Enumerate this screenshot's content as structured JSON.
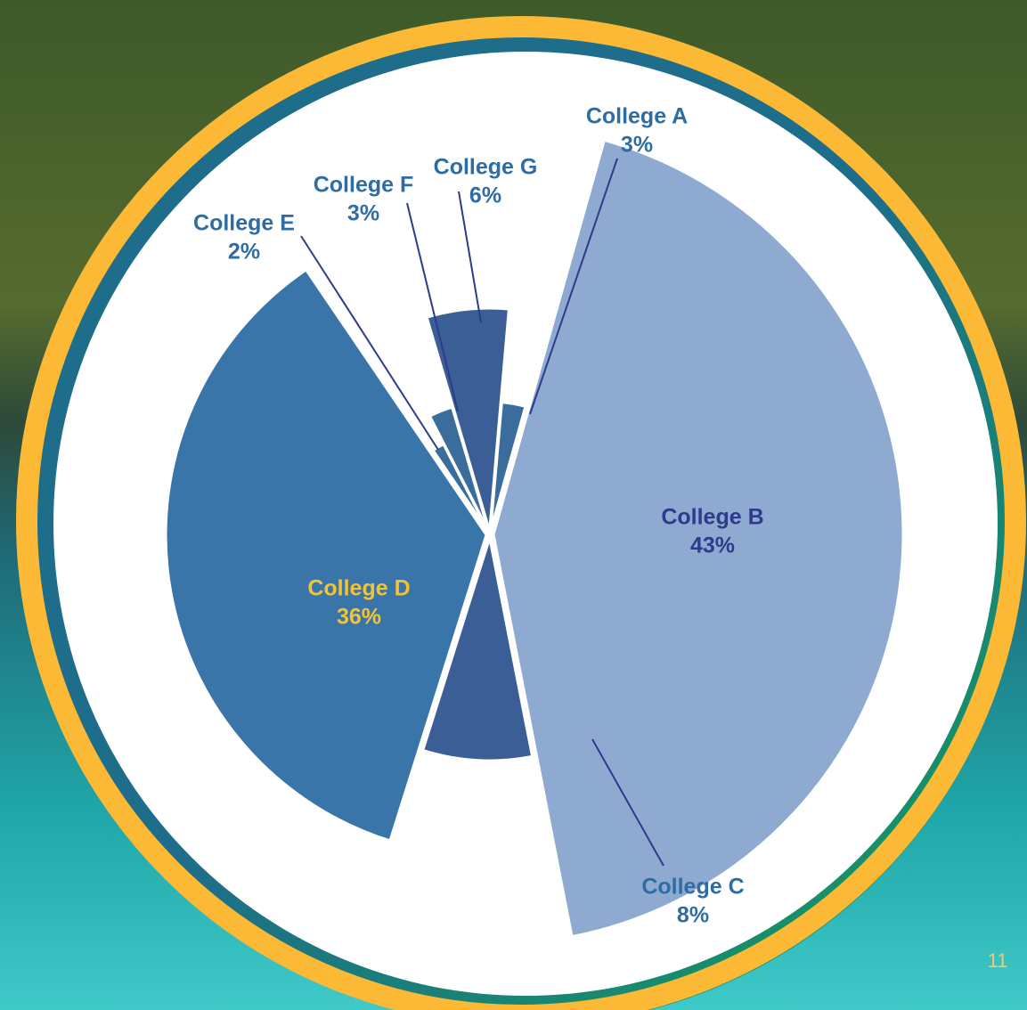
{
  "chart_data": {
    "type": "pie",
    "categories": [
      "College A",
      "College B",
      "College C",
      "College D",
      "College E",
      "College F",
      "College G"
    ],
    "values": [
      3,
      43,
      8,
      36,
      2,
      3,
      6
    ],
    "value_labels": [
      "3%",
      "43%",
      "8%",
      "36%",
      "2%",
      "3%",
      "6%"
    ],
    "colors": [
      "#3b6d9c",
      "#8faad0",
      "#3a5e95",
      "#3a75aa",
      "#3b6d9c",
      "#3b6d9c",
      "#3a5e95"
    ]
  },
  "page_number": "11"
}
